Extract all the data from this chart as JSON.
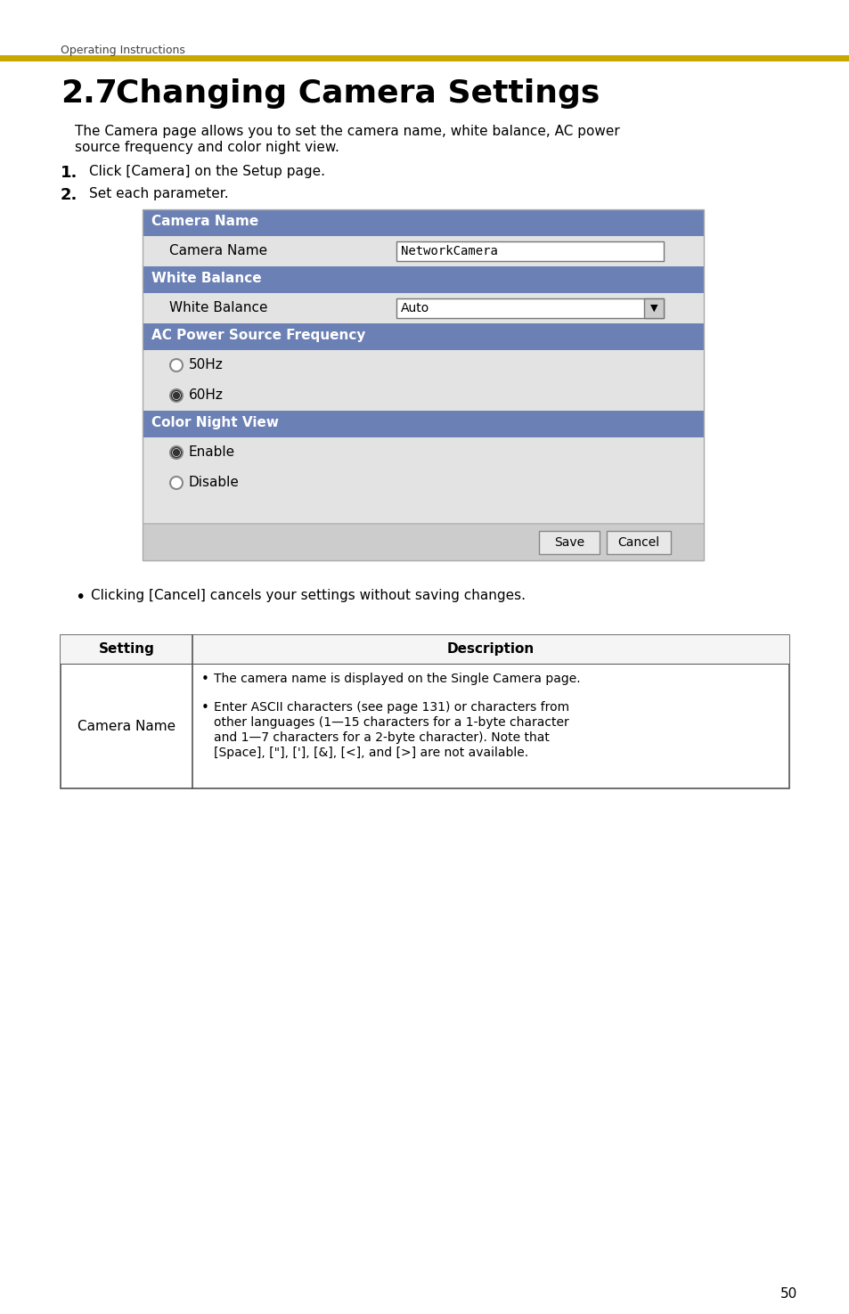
{
  "page_bg": "#ffffff",
  "header_text": "Operating Instructions",
  "header_line_color": "#c8a800",
  "title_num": "2.7",
  "title_text": "Changing Camera Settings",
  "body_text1_line1": "The Camera page allows you to set the camera name, white balance, AC power",
  "body_text1_line2": "source frequency and color night view.",
  "step1": "Click [Camera] on the Setup page.",
  "step2": "Set each parameter.",
  "section_header_color": "#6b80b4",
  "section_header_text_color": "#ffffff",
  "row_bg_light": "#e3e3e3",
  "table_border_color": "#999999",
  "bullet_text": "Clicking [Cancel] cancels your settings without saving changes.",
  "table_header_setting": "Setting",
  "table_header_description": "Description",
  "desc_line1": "The camera name is displayed on the Single Camera page.",
  "desc_line2": "Enter ASCII characters (see page 131) or characters from",
  "desc_line3": "other languages (1—15 characters for a 1-byte character",
  "desc_line4": "and 1—7 characters for a 2-byte character). Note that",
  "desc_line5": "[Space], [\"], ['], [&], [<], and [>] are not available.",
  "page_number": "50",
  "font_color": "#000000"
}
